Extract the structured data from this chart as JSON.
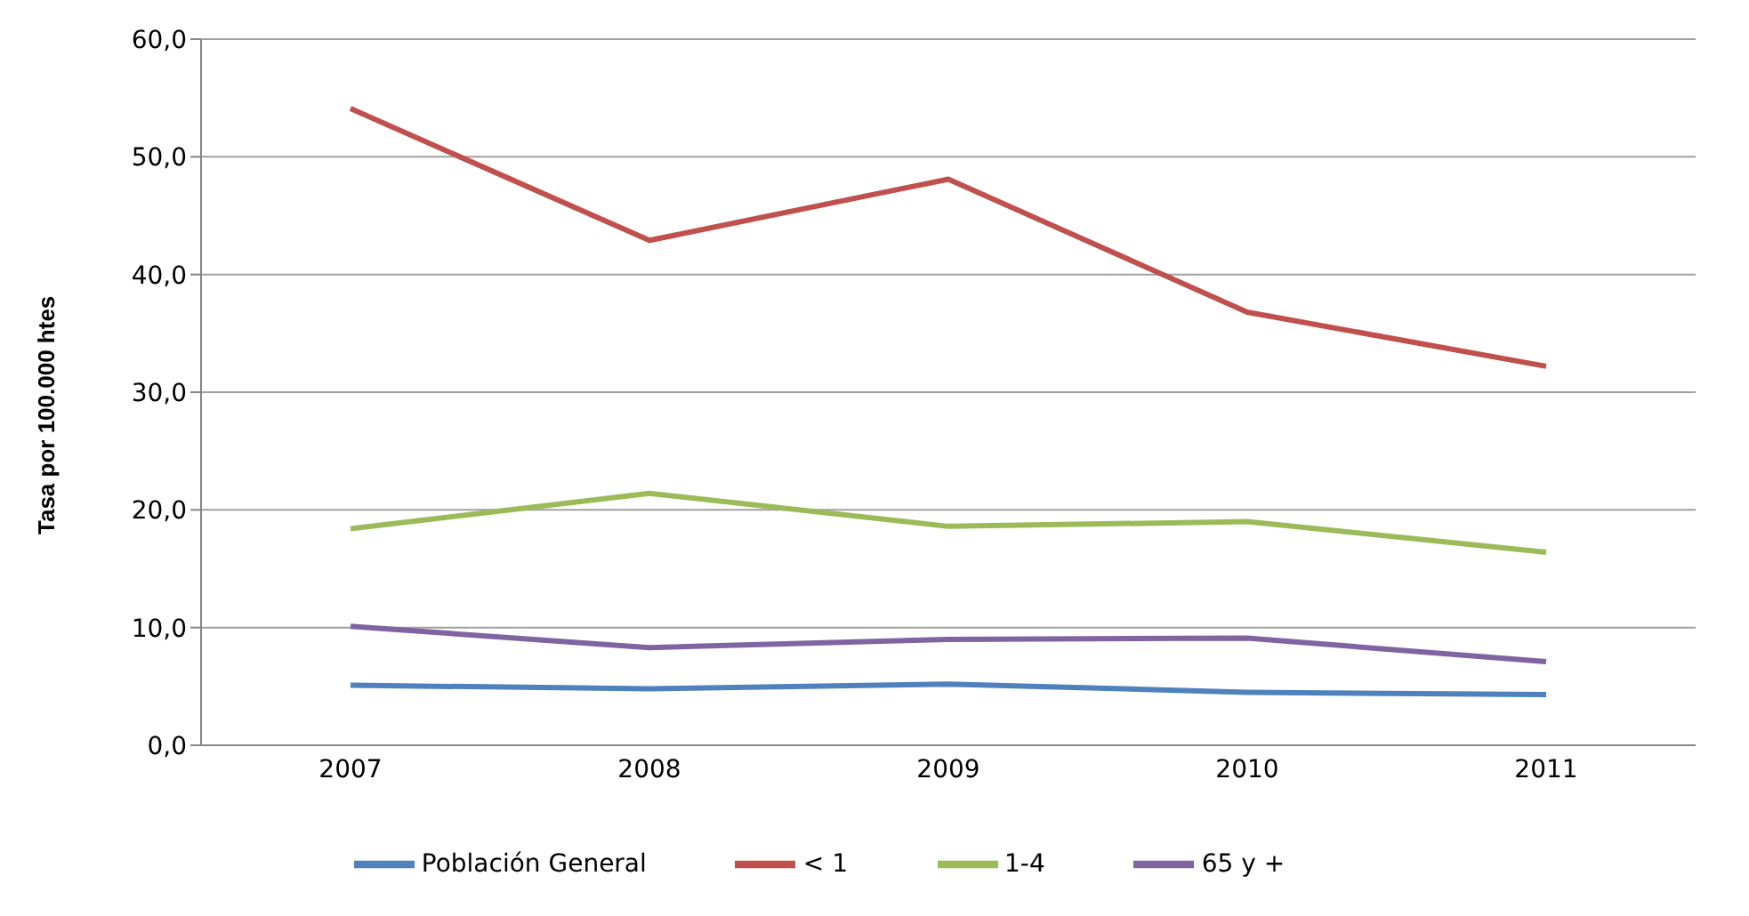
{
  "chart_data": {
    "type": "line",
    "ylabel": "Tasa por 100.000 htes",
    "categories": [
      "2007",
      "2008",
      "2009",
      "2010",
      "2011"
    ],
    "series": [
      {
        "name": "Población General",
        "color": "#4f81bd",
        "values": [
          5.1,
          4.8,
          5.2,
          4.5,
          4.3
        ]
      },
      {
        "name": "< 1",
        "color": "#c0504d",
        "values": [
          54.1,
          42.9,
          48.1,
          36.8,
          32.2
        ]
      },
      {
        "name": "1-4",
        "color": "#9bbb59",
        "values": [
          18.4,
          21.4,
          18.6,
          19.0,
          16.4
        ]
      },
      {
        "name": "65 y +",
        "color": "#8064a2",
        "values": [
          10.1,
          8.3,
          9.0,
          9.1,
          7.1
        ]
      }
    ],
    "ylim": [
      0,
      60
    ],
    "yticks": [
      {
        "value": 0,
        "label": "0,0"
      },
      {
        "value": 10,
        "label": "10,0"
      },
      {
        "value": 20,
        "label": "20,0"
      },
      {
        "value": 30,
        "label": "30,0"
      },
      {
        "value": 40,
        "label": "40,0"
      },
      {
        "value": 50,
        "label": "50,0"
      },
      {
        "value": 60,
        "label": "60,0"
      }
    ],
    "grid": "y",
    "legend": "bottom",
    "marker": "none",
    "line_style": "solid"
  }
}
